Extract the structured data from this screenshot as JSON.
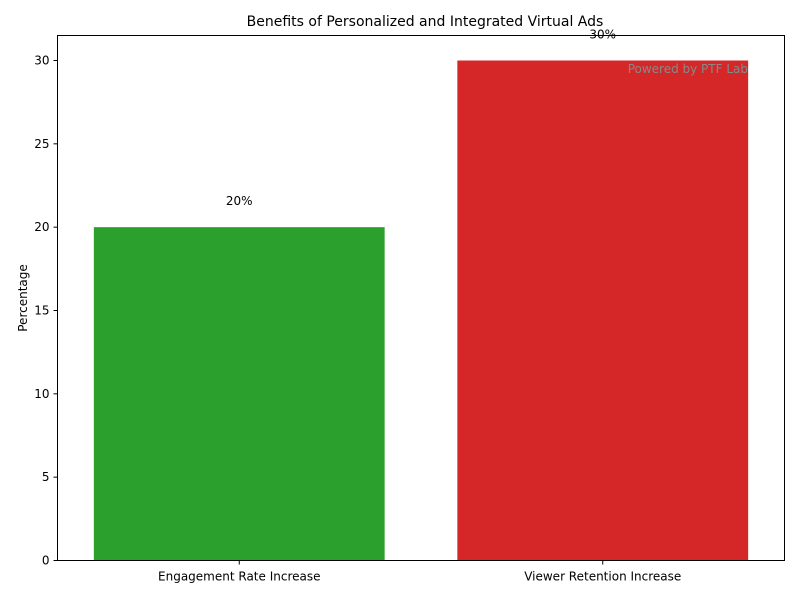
{
  "chart_data": {
    "type": "bar",
    "title": "Benefits of Personalized and Integrated Virtual Ads",
    "xlabel": "",
    "ylabel": "Percentage",
    "categories": [
      "Engagement Rate Increase",
      "Viewer Retention Increase"
    ],
    "values": [
      20,
      30
    ],
    "data_labels": [
      "20%",
      "30%"
    ],
    "colors": [
      "#2ca02c",
      "#d62728"
    ],
    "ylim": [
      0,
      31.5
    ],
    "yticks": [
      0,
      5,
      10,
      15,
      20,
      25,
      30
    ],
    "grid": false,
    "legend": "none"
  },
  "watermark": "Powered by PTF Lab"
}
